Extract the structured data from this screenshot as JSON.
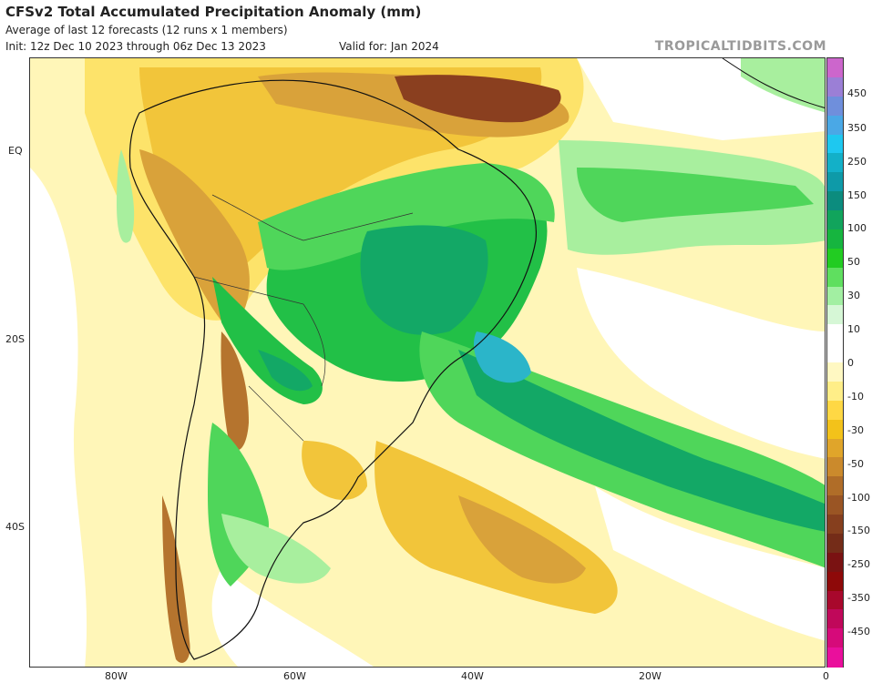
{
  "header": {
    "title": "CFSv2 Total Accumulated Precipitation Anomaly (mm)",
    "subtitle": "Average of last 12 forecasts (12 runs x 1 members)",
    "init": "Init: 12z Dec 10 2023 through 06z Dec 13 2023",
    "valid": "Valid for: Jan 2024",
    "brand": "TROPICALTIDBITS.COM"
  },
  "axes": {
    "lat_labels": [
      "EQ",
      "20S",
      "40S"
    ],
    "lon_labels": [
      "80W",
      "60W",
      "40W",
      "20W",
      "0"
    ]
  },
  "colorbar": {
    "labels": [
      "450",
      "350",
      "250",
      "150",
      "100",
      "50",
      "30",
      "10",
      "0",
      "-10",
      "-30",
      "-50",
      "-100",
      "-150",
      "-250",
      "-350",
      "-450"
    ],
    "colors": [
      "#cc66cc",
      "#9b7fd6",
      "#6f8fdc",
      "#4aa8e6",
      "#1ec8f0",
      "#13b0c8",
      "#0e9aa8",
      "#0c8c7e",
      "#11a45c",
      "#16b53f",
      "#22cc22",
      "#5fdf5f",
      "#a2efa2",
      "#d6f7d6",
      "#ffffff",
      "#ffffff",
      "#fff8c2",
      "#ffee88",
      "#ffd844",
      "#f3c21a",
      "#e0a52a",
      "#cb8a2c",
      "#b06d28",
      "#9a5524",
      "#863f1e",
      "#742c18",
      "#7a1212",
      "#8e0909",
      "#a8082c",
      "#c0085a",
      "#d60a7a",
      "#ea0f9c"
    ]
  },
  "map": {
    "field_colors": {
      "white": "#ffffff",
      "light_yellow": "#fff6b8",
      "yellow": "#fde36a",
      "gold": "#f2c53a",
      "orange": "#d9a23a",
      "brown": "#b5742e",
      "dark_brown": "#8a3f1f",
      "light_green": "#a8ef9e",
      "green": "#4fd65a",
      "mid_green": "#22c047",
      "dark_green": "#13a866",
      "teal": "#1596a8",
      "cyan": "#2bb5c9"
    }
  }
}
